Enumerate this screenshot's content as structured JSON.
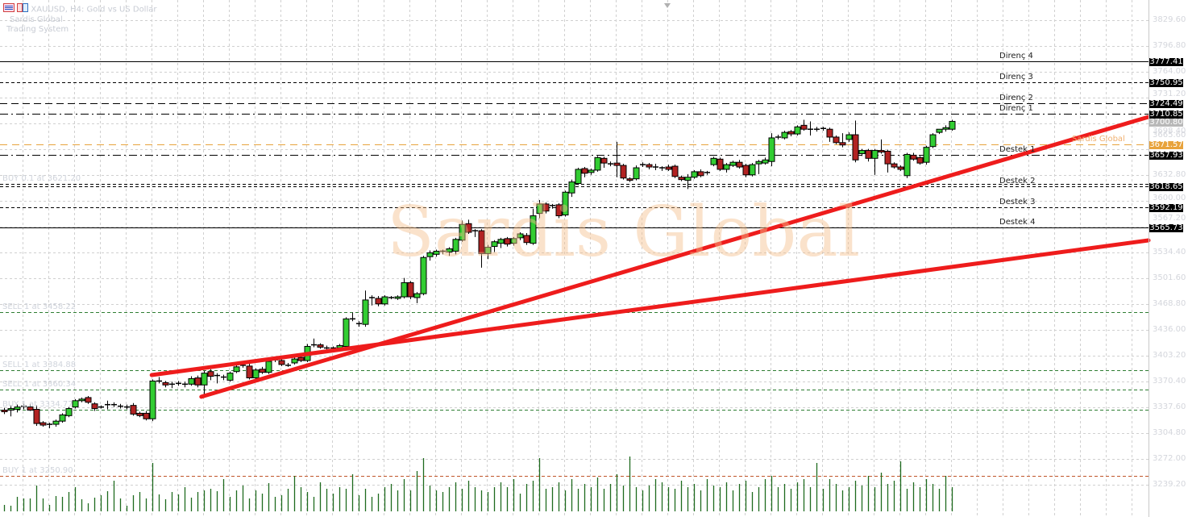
{
  "header": {
    "symbol_line": "XAUUSD, H4:  Gold vs US Dollar",
    "line2": "Sardis Global",
    "line3": "Trading System",
    "icons": [
      "list-icon",
      "template-icon"
    ]
  },
  "watermark": "Sardis Global",
  "colors": {
    "bull": "#32cd32",
    "bear": "#b22222",
    "trendline": "#ee1c1c",
    "level": "#000000",
    "order_buy_sell": "#2e7d32",
    "pivot": "#e8a33c",
    "volume": "#1e6b1e"
  },
  "levels": [
    {
      "name": "Direnç 4",
      "price_label": "3777.41",
      "price": 3777.41,
      "style": "solid"
    },
    {
      "name": "Direnç 3",
      "price_label": "3750.95",
      "price": 3750.95,
      "style": "dashed"
    },
    {
      "name": "Direnç 2",
      "price_label": "3724.49",
      "price": 3724.49,
      "style": "longdash"
    },
    {
      "name": "Direnç 1",
      "price_label": "3710.85",
      "price": 3710.85,
      "style": "dashdot"
    },
    {
      "name": "Destek 1",
      "price_label": "3657.93",
      "price": 3657.93,
      "style": "dashdot"
    },
    {
      "name": "Destek 2",
      "price_label": "3618.65",
      "price": 3618.65,
      "style": "double"
    },
    {
      "name": "Destek 3",
      "price_label": "3592.19",
      "price": 3592.19,
      "style": "dashed"
    },
    {
      "name": "Destek 4",
      "price_label": "3565.73",
      "price": 3565.73,
      "style": "solid"
    }
  ],
  "pivot": {
    "name": "Sardis Global",
    "price_label": "3671.57",
    "price": 3671.57
  },
  "current_price": {
    "price_label": "3700.80",
    "price": 3700.8
  },
  "orders": [
    {
      "label": "BUY 0.1 at 3621.20",
      "price": 3621.2,
      "color": "#2e7d32"
    },
    {
      "label": "SELL 1 at 3458.22",
      "price": 3458.22,
      "color": "#2e7d32"
    },
    {
      "label": "SELL 1 at 3384.88",
      "price": 3384.88,
      "color": "#2e7d32"
    },
    {
      "label": "SELL 1 at 3360.34",
      "price": 3360.34,
      "color": "#2e7d32"
    },
    {
      "label": "BUY 1 at 3334.77",
      "price": 3334.77,
      "color": "#2e7d32"
    },
    {
      "label": "BUY 1 at 3250.90",
      "price": 3250.9,
      "color": "#c0552a"
    }
  ],
  "chart_data": {
    "type": "candlestick",
    "title": "XAUUSD, H4:  Gold vs US Dollar",
    "ylim": [
      3239.2,
      3829.6
    ],
    "y_ticks": [
      "3829.60",
      "3796.80",
      "3764.00",
      "3731.20",
      "3698.40",
      "3665.60",
      "3632.80",
      "3600.00",
      "3567.20",
      "3534.40",
      "3501.60",
      "3468.80",
      "3436.00",
      "3403.20",
      "3370.40",
      "3337.60",
      "3304.80",
      "3272.00",
      "3239.20"
    ],
    "grid": true,
    "ohlc": [
      [
        3334,
        3337,
        3329,
        3332
      ],
      [
        3334,
        3340,
        3326,
        3336
      ],
      [
        3335,
        3341,
        3331,
        3338
      ],
      [
        3338,
        3342,
        3335,
        3339
      ],
      [
        3338,
        3342,
        3333,
        3334
      ],
      [
        3335,
        3340,
        3314,
        3317
      ],
      [
        3318,
        3320,
        3313,
        3315
      ],
      [
        3315,
        3318,
        3311,
        3316
      ],
      [
        3316,
        3322,
        3313,
        3320
      ],
      [
        3320,
        3330,
        3318,
        3328
      ],
      [
        3327,
        3338,
        3325,
        3336
      ],
      [
        3338,
        3348,
        3336,
        3346
      ],
      [
        3346,
        3350,
        3344,
        3348
      ],
      [
        3350,
        3352,
        3342,
        3344
      ],
      [
        3342,
        3344,
        3333,
        3336
      ],
      [
        3338,
        3340,
        3336,
        3338
      ],
      [
        3340,
        3346,
        3335,
        3341
      ],
      [
        3341,
        3344,
        3338,
        3340
      ],
      [
        3339,
        3342,
        3336,
        3339
      ],
      [
        3338,
        3341,
        3335,
        3337
      ],
      [
        3340,
        3343,
        3327,
        3329
      ],
      [
        3330,
        3332,
        3325,
        3327
      ],
      [
        3330,
        3333,
        3321,
        3323
      ],
      [
        3323,
        3373,
        3320,
        3371
      ],
      [
        3371,
        3376,
        3368,
        3370
      ],
      [
        3369,
        3371,
        3363,
        3366
      ],
      [
        3367,
        3370,
        3362,
        3367
      ],
      [
        3368,
        3371,
        3365,
        3368
      ],
      [
        3366,
        3370,
        3363,
        3367
      ],
      [
        3367,
        3377,
        3365,
        3374
      ],
      [
        3375,
        3378,
        3363,
        3366
      ],
      [
        3366,
        3384,
        3350,
        3381
      ],
      [
        3383,
        3386,
        3372,
        3377
      ],
      [
        3378,
        3381,
        3368,
        3378
      ],
      [
        3375,
        3379,
        3372,
        3376
      ],
      [
        3372,
        3383,
        3370,
        3381
      ],
      [
        3383,
        3392,
        3381,
        3389
      ],
      [
        3390,
        3393,
        3388,
        3391
      ],
      [
        3390,
        3393,
        3373,
        3375
      ],
      [
        3375,
        3387,
        3373,
        3385
      ],
      [
        3386,
        3389,
        3380,
        3382
      ],
      [
        3382,
        3399,
        3380,
        3396
      ],
      [
        3397,
        3400,
        3395,
        3398
      ],
      [
        3397,
        3399,
        3390,
        3392
      ],
      [
        3391,
        3394,
        3389,
        3391
      ],
      [
        3394,
        3401,
        3392,
        3399
      ],
      [
        3401,
        3404,
        3395,
        3397
      ],
      [
        3397,
        3418,
        3395,
        3415
      ],
      [
        3417,
        3425,
        3414,
        3417
      ],
      [
        3417,
        3419,
        3412,
        3414
      ],
      [
        3413,
        3416,
        3411,
        3413
      ],
      [
        3413,
        3415,
        3410,
        3412
      ],
      [
        3413,
        3418,
        3411,
        3416
      ],
      [
        3415,
        3452,
        3413,
        3450
      ],
      [
        3450,
        3458,
        3447,
        3450
      ],
      [
        3444,
        3447,
        3440,
        3443
      ],
      [
        3443,
        3486,
        3440,
        3474
      ],
      [
        3476,
        3480,
        3467,
        3477
      ],
      [
        3476,
        3479,
        3466,
        3469
      ],
      [
        3469,
        3480,
        3467,
        3478
      ],
      [
        3477,
        3479,
        3475,
        3476
      ],
      [
        3476,
        3480,
        3474,
        3478
      ],
      [
        3478,
        3502,
        3476,
        3496
      ],
      [
        3496,
        3498,
        3475,
        3478
      ],
      [
        3477,
        3484,
        3470,
        3482
      ],
      [
        3482,
        3530,
        3480,
        3528
      ],
      [
        3529,
        3537,
        3524,
        3534
      ],
      [
        3532,
        3538,
        3529,
        3536
      ],
      [
        3536,
        3538,
        3532,
        3536
      ],
      [
        3535,
        3541,
        3530,
        3539
      ],
      [
        3536,
        3553,
        3532,
        3551
      ],
      [
        3550,
        3575,
        3548,
        3570
      ],
      [
        3571,
        3576,
        3558,
        3560
      ],
      [
        3562,
        3564,
        3554,
        3562
      ],
      [
        3562,
        3564,
        3515,
        3533
      ],
      [
        3533,
        3544,
        3526,
        3541
      ],
      [
        3542,
        3550,
        3535,
        3548
      ],
      [
        3546,
        3553,
        3540,
        3551
      ],
      [
        3552,
        3554,
        3542,
        3545
      ],
      [
        3546,
        3554,
        3543,
        3552
      ],
      [
        3553,
        3560,
        3550,
        3558
      ],
      [
        3556,
        3559,
        3544,
        3547
      ],
      [
        3546,
        3590,
        3544,
        3581
      ],
      [
        3584,
        3601,
        3578,
        3596
      ],
      [
        3596,
        3598,
        3584,
        3587
      ],
      [
        3594,
        3596,
        3590,
        3594
      ],
      [
        3595,
        3597,
        3578,
        3581
      ],
      [
        3582,
        3613,
        3580,
        3611
      ],
      [
        3610,
        3627,
        3605,
        3624
      ],
      [
        3622,
        3642,
        3620,
        3640
      ],
      [
        3641,
        3643,
        3630,
        3635
      ],
      [
        3636,
        3641,
        3633,
        3639
      ],
      [
        3639,
        3657,
        3637,
        3655
      ],
      [
        3654,
        3656,
        3642,
        3648
      ],
      [
        3647,
        3650,
        3644,
        3647
      ],
      [
        3648,
        3675,
        3630,
        3645
      ],
      [
        3645,
        3647,
        3627,
        3629
      ],
      [
        3628,
        3630,
        3624,
        3626
      ],
      [
        3628,
        3645,
        3626,
        3642
      ],
      [
        3646,
        3649,
        3643,
        3645
      ],
      [
        3646,
        3648,
        3640,
        3643
      ],
      [
        3643,
        3647,
        3639,
        3643
      ],
      [
        3642,
        3644,
        3638,
        3642
      ],
      [
        3643,
        3646,
        3638,
        3640
      ],
      [
        3644,
        3646,
        3629,
        3631
      ],
      [
        3630,
        3632,
        3625,
        3627
      ],
      [
        3626,
        3634,
        3615,
        3630
      ],
      [
        3630,
        3639,
        3628,
        3637
      ],
      [
        3637,
        3640,
        3630,
        3632
      ],
      [
        3636,
        3638,
        3633,
        3636
      ],
      [
        3646,
        3656,
        3644,
        3654
      ],
      [
        3653,
        3655,
        3638,
        3640
      ],
      [
        3640,
        3648,
        3636,
        3646
      ],
      [
        3645,
        3651,
        3643,
        3649
      ],
      [
        3649,
        3652,
        3641,
        3643
      ],
      [
        3645,
        3647,
        3630,
        3633
      ],
      [
        3633,
        3648,
        3631,
        3646
      ],
      [
        3647,
        3652,
        3634,
        3650
      ],
      [
        3648,
        3655,
        3646,
        3652
      ],
      [
        3650,
        3686,
        3644,
        3680
      ],
      [
        3681,
        3684,
        3678,
        3681
      ],
      [
        3680,
        3689,
        3678,
        3687
      ],
      [
        3688,
        3690,
        3682,
        3685
      ],
      [
        3685,
        3696,
        3683,
        3694
      ],
      [
        3696,
        3703,
        3689,
        3691
      ],
      [
        3691,
        3701,
        3683,
        3691
      ],
      [
        3691,
        3694,
        3688,
        3691
      ],
      [
        3691,
        3694,
        3689,
        3692
      ],
      [
        3691,
        3693,
        3675,
        3681
      ],
      [
        3681,
        3683,
        3672,
        3674
      ],
      [
        3674,
        3686,
        3668,
        3671
      ],
      [
        3678,
        3687,
        3675,
        3684
      ],
      [
        3684,
        3702,
        3649,
        3652
      ],
      [
        3660,
        3666,
        3657,
        3664
      ],
      [
        3664,
        3666,
        3650,
        3654
      ],
      [
        3654,
        3666,
        3633,
        3664
      ],
      [
        3664,
        3678,
        3660,
        3662
      ],
      [
        3663,
        3665,
        3636,
        3647
      ],
      [
        3647,
        3649,
        3641,
        3643
      ],
      [
        3643,
        3645,
        3638,
        3640
      ],
      [
        3632,
        3661,
        3629,
        3659
      ],
      [
        3658,
        3661,
        3651,
        3653
      ],
      [
        3655,
        3657,
        3646,
        3648
      ],
      [
        3649,
        3670,
        3646,
        3668
      ],
      [
        3669,
        3686,
        3667,
        3684
      ],
      [
        3687,
        3690,
        3685,
        3691
      ],
      [
        3691,
        3696,
        3688,
        3693
      ],
      [
        3691,
        3703,
        3689,
        3701
      ]
    ],
    "volume": [
      8,
      7,
      18,
      16,
      16,
      32,
      16,
      8,
      19,
      18,
      24,
      30,
      15,
      10,
      17,
      20,
      25,
      38,
      16,
      7,
      20,
      24,
      16,
      60,
      21,
      15,
      24,
      21,
      30,
      17,
      24,
      26,
      28,
      25,
      40,
      18,
      26,
      32,
      16,
      26,
      22,
      35,
      18,
      20,
      28,
      44,
      30,
      24,
      18,
      36,
      28,
      22,
      30,
      28,
      46,
      20,
      28,
      18,
      22,
      30,
      34,
      26,
      40,
      26,
      50,
      66,
      32,
      26,
      24,
      30,
      36,
      28,
      38,
      30,
      26,
      24,
      30,
      36,
      30,
      40,
      22,
      34,
      38,
      66,
      28,
      30,
      36,
      26,
      40,
      28,
      34,
      30,
      42,
      28,
      34,
      46,
      32,
      68,
      30,
      26,
      32,
      40,
      36,
      30,
      28,
      38,
      30,
      34,
      26,
      40,
      32,
      30,
      36,
      26,
      34,
      38,
      24,
      30,
      40,
      44,
      30,
      34,
      28,
      36,
      40,
      30,
      60,
      28,
      40,
      34,
      26,
      30,
      38,
      32,
      44,
      30,
      48,
      34,
      38,
      62,
      28,
      36,
      30,
      40,
      34,
      28,
      44,
      30
    ]
  },
  "trendlines": [
    {
      "from": {
        "bar": 22.9,
        "price": 3378.6
      },
      "to": {
        "bar": 177.5,
        "price": 3549.8
      }
    },
    {
      "from": {
        "bar": 30.6,
        "price": 3351.0
      },
      "to": {
        "bar": 177.5,
        "price": 3706.6
      }
    }
  ]
}
